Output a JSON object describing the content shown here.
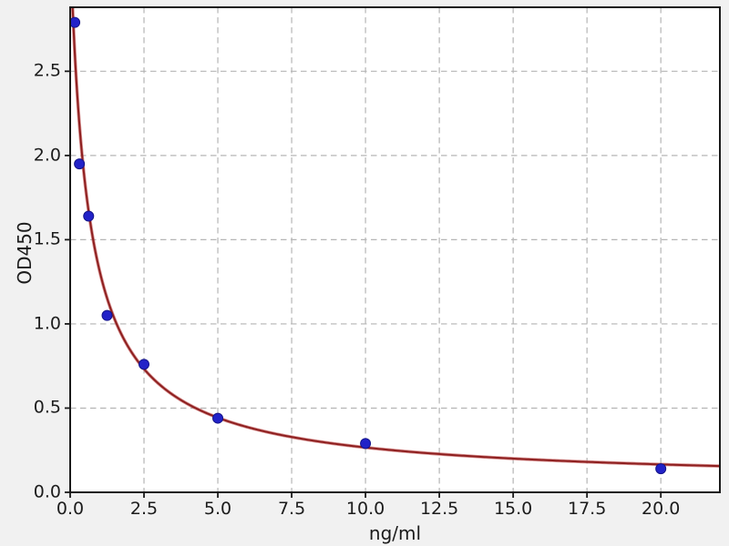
{
  "style": {
    "figure_background": "#f1f1f1",
    "plot_background": "#ffffff",
    "grid_color": "#b5b5b5",
    "spine_color": "#1a1a1a",
    "text_color": "#1c1c1c"
  },
  "chart_data": {
    "type": "scatter",
    "title": "",
    "xlabel": "ng/ml",
    "ylabel": "OD450",
    "xlim": [
      0,
      22
    ],
    "ylim": [
      0,
      2.88
    ],
    "grid": true,
    "grid_style": "dashed",
    "legend": false,
    "xticks": {
      "values": [
        0,
        2.5,
        5,
        7.5,
        10,
        12.5,
        15,
        17.5,
        20
      ],
      "labels": [
        "0.0",
        "2.5",
        "5.0",
        "7.5",
        "10.0",
        "12.5",
        "15.0",
        "17.5",
        "20.0"
      ]
    },
    "yticks": {
      "values": [
        0,
        0.5,
        1,
        1.5,
        2,
        2.5
      ],
      "labels": [
        "0.0",
        "0.5",
        "1.0",
        "1.5",
        "2.0",
        "2.5"
      ]
    },
    "series": [
      {
        "name": "standard-points",
        "type": "scatter",
        "color": "#2222c8",
        "edge_color": "#15158a",
        "marker_radius": 5.5,
        "x": [
          0.156,
          0.313,
          0.625,
          1.25,
          2.5,
          5,
          10,
          20
        ],
        "y": [
          2.79,
          1.95,
          1.64,
          1.05,
          0.76,
          0.44,
          0.29,
          0.14
        ]
      },
      {
        "name": "4pl-fit-curve",
        "type": "line",
        "color": "#8e2020",
        "halo_color": "#c25555",
        "fit": {
          "model": "4PL",
          "a": 3.3,
          "b": 0.95,
          "c": 0.62,
          "d": 0.05
        }
      }
    ]
  }
}
